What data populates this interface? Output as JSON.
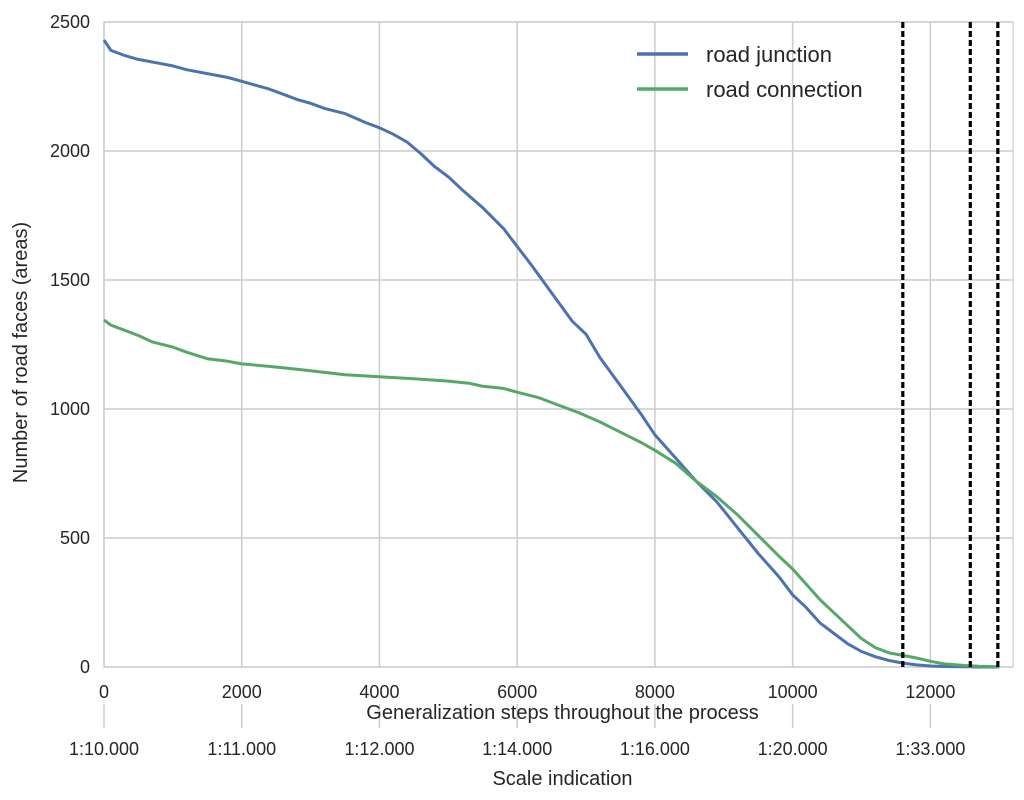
{
  "chart_data": {
    "type": "line",
    "title": "",
    "xlabel": "Generalization steps throughout the process",
    "ylabel": "Number of road faces (areas)",
    "secondary_xlabel": "Scale indication",
    "xlim": [
      0,
      13200
    ],
    "ylim": [
      0,
      2500
    ],
    "grid": true,
    "legend_position": "top-right",
    "x_ticks": [
      0,
      2000,
      4000,
      6000,
      8000,
      10000,
      12000
    ],
    "y_ticks": [
      0,
      500,
      1000,
      1500,
      2000,
      2500
    ],
    "x_tick_labels": [
      "0",
      "2000",
      "4000",
      "6000",
      "8000",
      "10000",
      "12000"
    ],
    "y_tick_labels": [
      "0",
      "500",
      "1000",
      "1500",
      "2000",
      "2500"
    ],
    "scale_ticks": [
      {
        "x": 0,
        "label": "1:10.000"
      },
      {
        "x": 2000,
        "label": "1:11.000"
      },
      {
        "x": 4000,
        "label": "1:12.000"
      },
      {
        "x": 6000,
        "label": "1:14.000"
      },
      {
        "x": 8000,
        "label": "1:16.000"
      },
      {
        "x": 10000,
        "label": "1:20.000"
      },
      {
        "x": 12000,
        "label": "1:33.000"
      }
    ],
    "vlines": [
      11600,
      12580,
      12980
    ],
    "series": [
      {
        "name": "road junction",
        "color": "#4c72b0",
        "x": [
          0,
          50,
          100,
          300,
          500,
          800,
          1000,
          1200,
          1500,
          1800,
          2000,
          2200,
          2400,
          2600,
          2800,
          3000,
          3200,
          3500,
          3800,
          4000,
          4200,
          4400,
          4600,
          4800,
          5000,
          5200,
          5500,
          5800,
          6000,
          6200,
          6500,
          6800,
          7000,
          7200,
          7500,
          7800,
          8000,
          8300,
          8600,
          8900,
          9200,
          9500,
          9800,
          10000,
          10200,
          10400,
          10600,
          10800,
          11000,
          11200,
          11400,
          11600,
          11800,
          12000,
          12200,
          12500,
          12700,
          13000
        ],
        "values": [
          2430,
          2410,
          2390,
          2370,
          2355,
          2340,
          2330,
          2315,
          2300,
          2285,
          2270,
          2255,
          2240,
          2220,
          2200,
          2185,
          2165,
          2145,
          2110,
          2090,
          2065,
          2035,
          1990,
          1940,
          1900,
          1850,
          1780,
          1700,
          1630,
          1560,
          1450,
          1340,
          1290,
          1200,
          1090,
          980,
          900,
          810,
          720,
          640,
          540,
          440,
          350,
          280,
          230,
          170,
          130,
          90,
          60,
          40,
          25,
          15,
          8,
          4,
          2,
          1,
          0,
          0
        ]
      },
      {
        "name": "road connection",
        "color": "#55a868",
        "x": [
          0,
          50,
          100,
          300,
          500,
          700,
          1000,
          1200,
          1500,
          1800,
          2000,
          2300,
          2600,
          3000,
          3500,
          4000,
          4500,
          5000,
          5300,
          5500,
          5800,
          6000,
          6300,
          6600,
          6900,
          7200,
          7500,
          7800,
          8000,
          8300,
          8600,
          8900,
          9200,
          9500,
          9800,
          10000,
          10200,
          10400,
          10600,
          10800,
          11000,
          11200,
          11400,
          11600,
          11800,
          12000,
          12200,
          12500,
          12700,
          13000
        ],
        "values": [
          1345,
          1335,
          1325,
          1305,
          1285,
          1260,
          1240,
          1220,
          1195,
          1185,
          1175,
          1168,
          1160,
          1148,
          1133,
          1125,
          1117,
          1108,
          1100,
          1088,
          1080,
          1065,
          1045,
          1015,
          985,
          950,
          910,
          870,
          840,
          790,
          720,
          660,
          590,
          510,
          430,
          380,
          320,
          260,
          210,
          160,
          110,
          75,
          55,
          45,
          35,
          22,
          12,
          6,
          3,
          1
        ]
      }
    ]
  }
}
